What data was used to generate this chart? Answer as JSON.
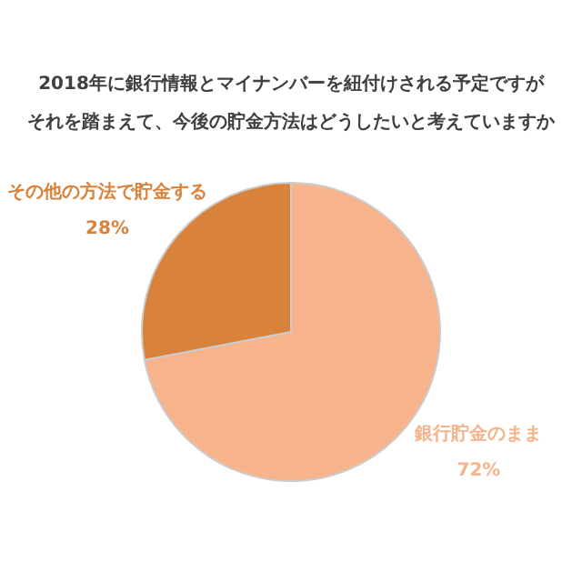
{
  "chart_data": {
    "type": "pie",
    "title": "2018年に銀行情報とマイナンバーを紐付けされる予定ですが",
    "subtitle": "それを踏まえて、今後の貯金方法はどうしたいと考えていますか",
    "categories": [
      "銀行貯金のまま",
      "その他の方法で貯金する"
    ],
    "values": [
      72,
      28
    ],
    "value_labels": [
      "72%",
      "28%"
    ],
    "colors": [
      "#f7b48c",
      "#d9823b"
    ],
    "legend": false
  }
}
